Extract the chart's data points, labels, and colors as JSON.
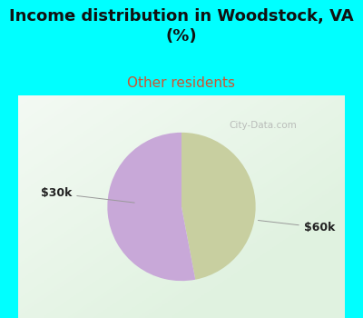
{
  "title": "Income distribution in Woodstock, VA\n(%)",
  "subtitle": "Other residents",
  "slices": [
    47,
    53
  ],
  "slice_labels": [
    "$30k",
    "$60k"
  ],
  "slice_colors": [
    "#c8cfa0",
    "#c8a8d8"
  ],
  "background_color": "#00ffff",
  "chart_bg_color": "#e8f5ee",
  "title_color": "#111111",
  "subtitle_color": "#cc5533",
  "label_color": "#222222",
  "title_fontsize": 13,
  "subtitle_fontsize": 11,
  "label_fontsize": 9,
  "watermark": "City-Data.com"
}
